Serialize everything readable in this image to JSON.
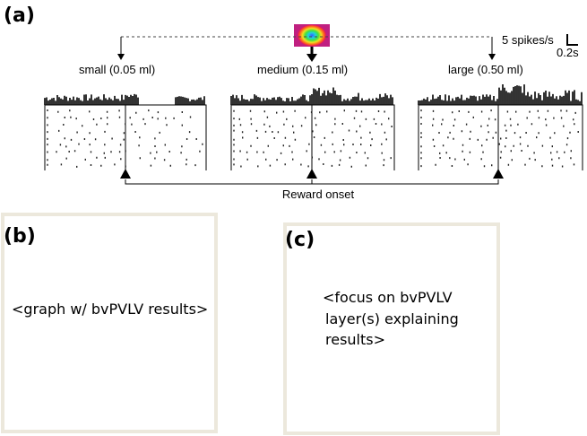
{
  "panel_a": {
    "label": "(a)",
    "conditions": [
      "small (0.05 ml)",
      "medium (0.15 ml)",
      "large (0.50 ml)"
    ],
    "scale_rate": "5 spikes/s",
    "scale_time": "0.2s",
    "event_label": "Reward onset"
  },
  "panel_b": {
    "label": "(b)",
    "placeholder": "<graph w/ bvPVLV results>"
  },
  "panel_c": {
    "label": "(c)",
    "placeholder_lines": [
      "<focus on bvPVLV",
      "layer(s) explaining",
      "results>"
    ]
  }
}
